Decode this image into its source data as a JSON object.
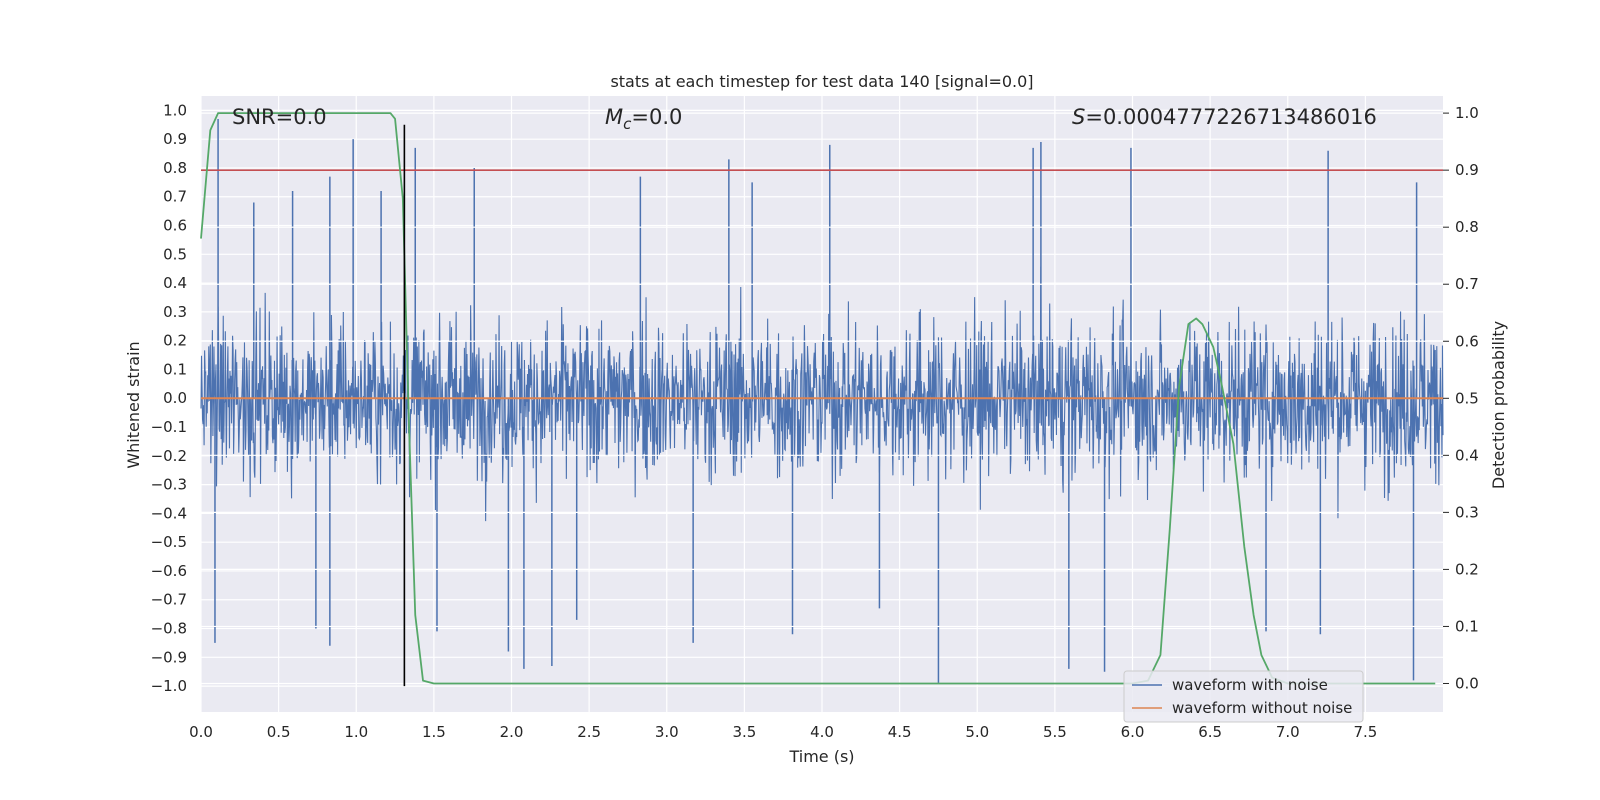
{
  "chart_data": {
    "type": "line",
    "title": "stats at each timestep for test data 140 [signal=0.0]",
    "xlabel": "Time (s)",
    "ylabel_left": "Whitened strain",
    "ylabel_right": "Detection probability",
    "xlim": [
      0.0,
      8.0
    ],
    "ylim_left": [
      -1.09,
      1.05
    ],
    "ylim_right": [
      -0.05,
      1.03
    ],
    "x_ticks": [
      0.0,
      0.5,
      1.0,
      1.5,
      2.0,
      2.5,
      3.0,
      3.5,
      4.0,
      4.5,
      5.0,
      5.5,
      6.0,
      6.5,
      7.0,
      7.5
    ],
    "x_tick_labels": [
      "0.0",
      "0.5",
      "1.0",
      "1.5",
      "2.0",
      "2.5",
      "3.0",
      "3.5",
      "4.0",
      "4.5",
      "5.0",
      "5.5",
      "6.0",
      "6.5",
      "7.0",
      "7.5"
    ],
    "y_left_ticks": [
      1.0,
      0.9,
      0.8,
      0.7,
      0.6,
      0.5,
      0.4,
      0.3,
      0.2,
      0.1,
      0.0,
      -0.1,
      -0.2,
      -0.3,
      -0.4,
      -0.5,
      -0.6,
      -0.7,
      -0.8,
      -0.9,
      -1.0
    ],
    "y_left_tick_labels": [
      "1.0",
      "0.9",
      "0.8",
      "0.7",
      "0.6",
      "0.5",
      "0.4",
      "0.3",
      "0.2",
      "0.1",
      "0.0",
      "−0.1",
      "−0.2",
      "−0.3",
      "−0.4",
      "−0.5",
      "−0.6",
      "−0.7",
      "−0.8",
      "−0.9",
      "−1.0"
    ],
    "y_right_ticks": [
      1.0,
      0.9,
      0.8,
      0.7,
      0.6,
      0.5,
      0.4,
      0.3,
      0.2,
      0.1,
      0.0
    ],
    "y_right_tick_labels": [
      "1.0",
      "0.9",
      "0.8",
      "0.7",
      "0.6",
      "0.5",
      "0.4",
      "0.3",
      "0.2",
      "0.1",
      "0.0"
    ],
    "annotations": {
      "snr_text": "SNR=0.0",
      "mc_symbol": "M",
      "mc_sub": "c",
      "mc_value": "=0.0",
      "s_symbol": "S",
      "s_value": "=0.0004777226713486016"
    },
    "series": [
      {
        "name": "waveform with noise",
        "axis": "left",
        "color": "#4c72b0",
        "kind": "noise",
        "envelope_typical": [
          -0.45,
          0.45
        ],
        "extremes": [
          {
            "x": 0.11,
            "y": 0.97
          },
          {
            "x": 0.09,
            "y": -0.85
          },
          {
            "x": 0.34,
            "y": 0.68
          },
          {
            "x": 0.59,
            "y": 0.72
          },
          {
            "x": 0.74,
            "y": -0.8
          },
          {
            "x": 0.83,
            "y": 0.77
          },
          {
            "x": 0.83,
            "y": -0.86
          },
          {
            "x": 0.98,
            "y": 0.9
          },
          {
            "x": 1.16,
            "y": 0.72
          },
          {
            "x": 1.38,
            "y": 0.87
          },
          {
            "x": 1.52,
            "y": -0.81
          },
          {
            "x": 1.76,
            "y": 0.8
          },
          {
            "x": 1.98,
            "y": -0.88
          },
          {
            "x": 2.08,
            "y": -0.94
          },
          {
            "x": 2.26,
            "y": -0.93
          },
          {
            "x": 2.42,
            "y": -0.77
          },
          {
            "x": 2.83,
            "y": 0.77
          },
          {
            "x": 3.17,
            "y": -0.85
          },
          {
            "x": 3.4,
            "y": 0.83
          },
          {
            "x": 3.55,
            "y": 0.75
          },
          {
            "x": 3.81,
            "y": -0.82
          },
          {
            "x": 4.05,
            "y": 0.88
          },
          {
            "x": 4.37,
            "y": -0.73
          },
          {
            "x": 4.75,
            "y": -0.99
          },
          {
            "x": 5.36,
            "y": 0.87
          },
          {
            "x": 5.41,
            "y": 0.89
          },
          {
            "x": 5.59,
            "y": -0.94
          },
          {
            "x": 5.82,
            "y": -0.95
          },
          {
            "x": 5.99,
            "y": 0.87
          },
          {
            "x": 6.86,
            "y": -0.81
          },
          {
            "x": 7.21,
            "y": -0.82
          },
          {
            "x": 7.26,
            "y": 0.86
          },
          {
            "x": 7.81,
            "y": -0.98
          },
          {
            "x": 7.83,
            "y": 0.75
          }
        ]
      },
      {
        "name": "waveform without noise",
        "axis": "left",
        "color": "#dd8452",
        "x": [
          0.0,
          8.0
        ],
        "y": [
          0.0,
          0.0
        ]
      },
      {
        "name": "detection probability",
        "axis": "right",
        "color": "#55a868",
        "in_legend": false,
        "x": [
          0.0,
          0.06,
          0.11,
          0.2,
          0.4,
          0.6,
          0.8,
          1.0,
          1.15,
          1.22,
          1.25,
          1.3,
          1.34,
          1.38,
          1.43,
          1.5,
          2.0,
          3.0,
          4.0,
          5.0,
          5.5,
          6.0,
          6.1,
          6.18,
          6.24,
          6.3,
          6.36,
          6.41,
          6.45,
          6.52,
          6.57,
          6.65,
          6.72,
          6.78,
          6.83,
          6.9,
          7.0,
          7.5,
          7.95
        ],
        "y": [
          0.78,
          0.97,
          1.0,
          1.0,
          1.0,
          1.0,
          1.0,
          1.0,
          1.0,
          1.0,
          0.99,
          0.85,
          0.45,
          0.12,
          0.005,
          0.0,
          0.0,
          0.0,
          0.0,
          0.0,
          0.0,
          0.0,
          0.005,
          0.05,
          0.27,
          0.52,
          0.63,
          0.64,
          0.63,
          0.59,
          0.53,
          0.42,
          0.24,
          0.12,
          0.05,
          0.01,
          0.0,
          0.0,
          0.0
        ]
      }
    ],
    "threshold": {
      "axis": "right",
      "y": 0.9,
      "color": "#c44e52"
    },
    "event_marker": {
      "x": 1.31,
      "y_from_left": -1.0,
      "y_to_left": 0.95,
      "color": "#000000"
    },
    "legend": {
      "placement": "lower-right",
      "entries": [
        {
          "label": "waveform with noise",
          "color": "#4c72b0"
        },
        {
          "label": "waveform without noise",
          "color": "#dd8452"
        }
      ]
    }
  }
}
